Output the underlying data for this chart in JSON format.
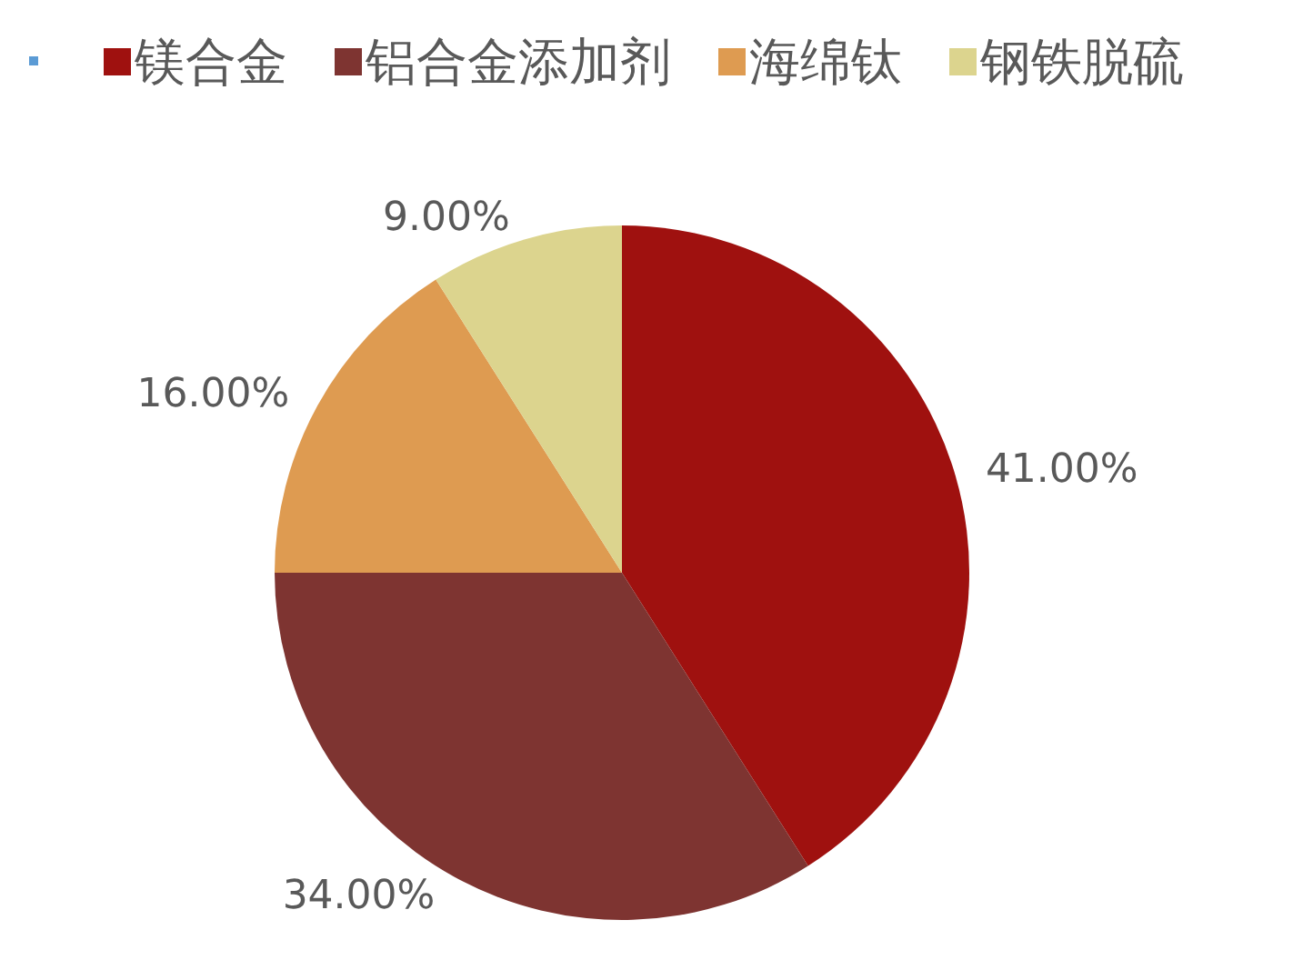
{
  "chart_data": {
    "type": "pie",
    "categories": [
      "镁合金",
      "铝合金添加剂",
      "海绵钛",
      "钢铁脱硫"
    ],
    "values": [
      41,
      34,
      16,
      9
    ],
    "colors": [
      "#9f110f",
      "#7e3431",
      "#de9b51",
      "#dcd48e"
    ],
    "value_labels": [
      "41.00%",
      "34.00%",
      "16.00%",
      "9.00%"
    ],
    "legend": "top"
  }
}
